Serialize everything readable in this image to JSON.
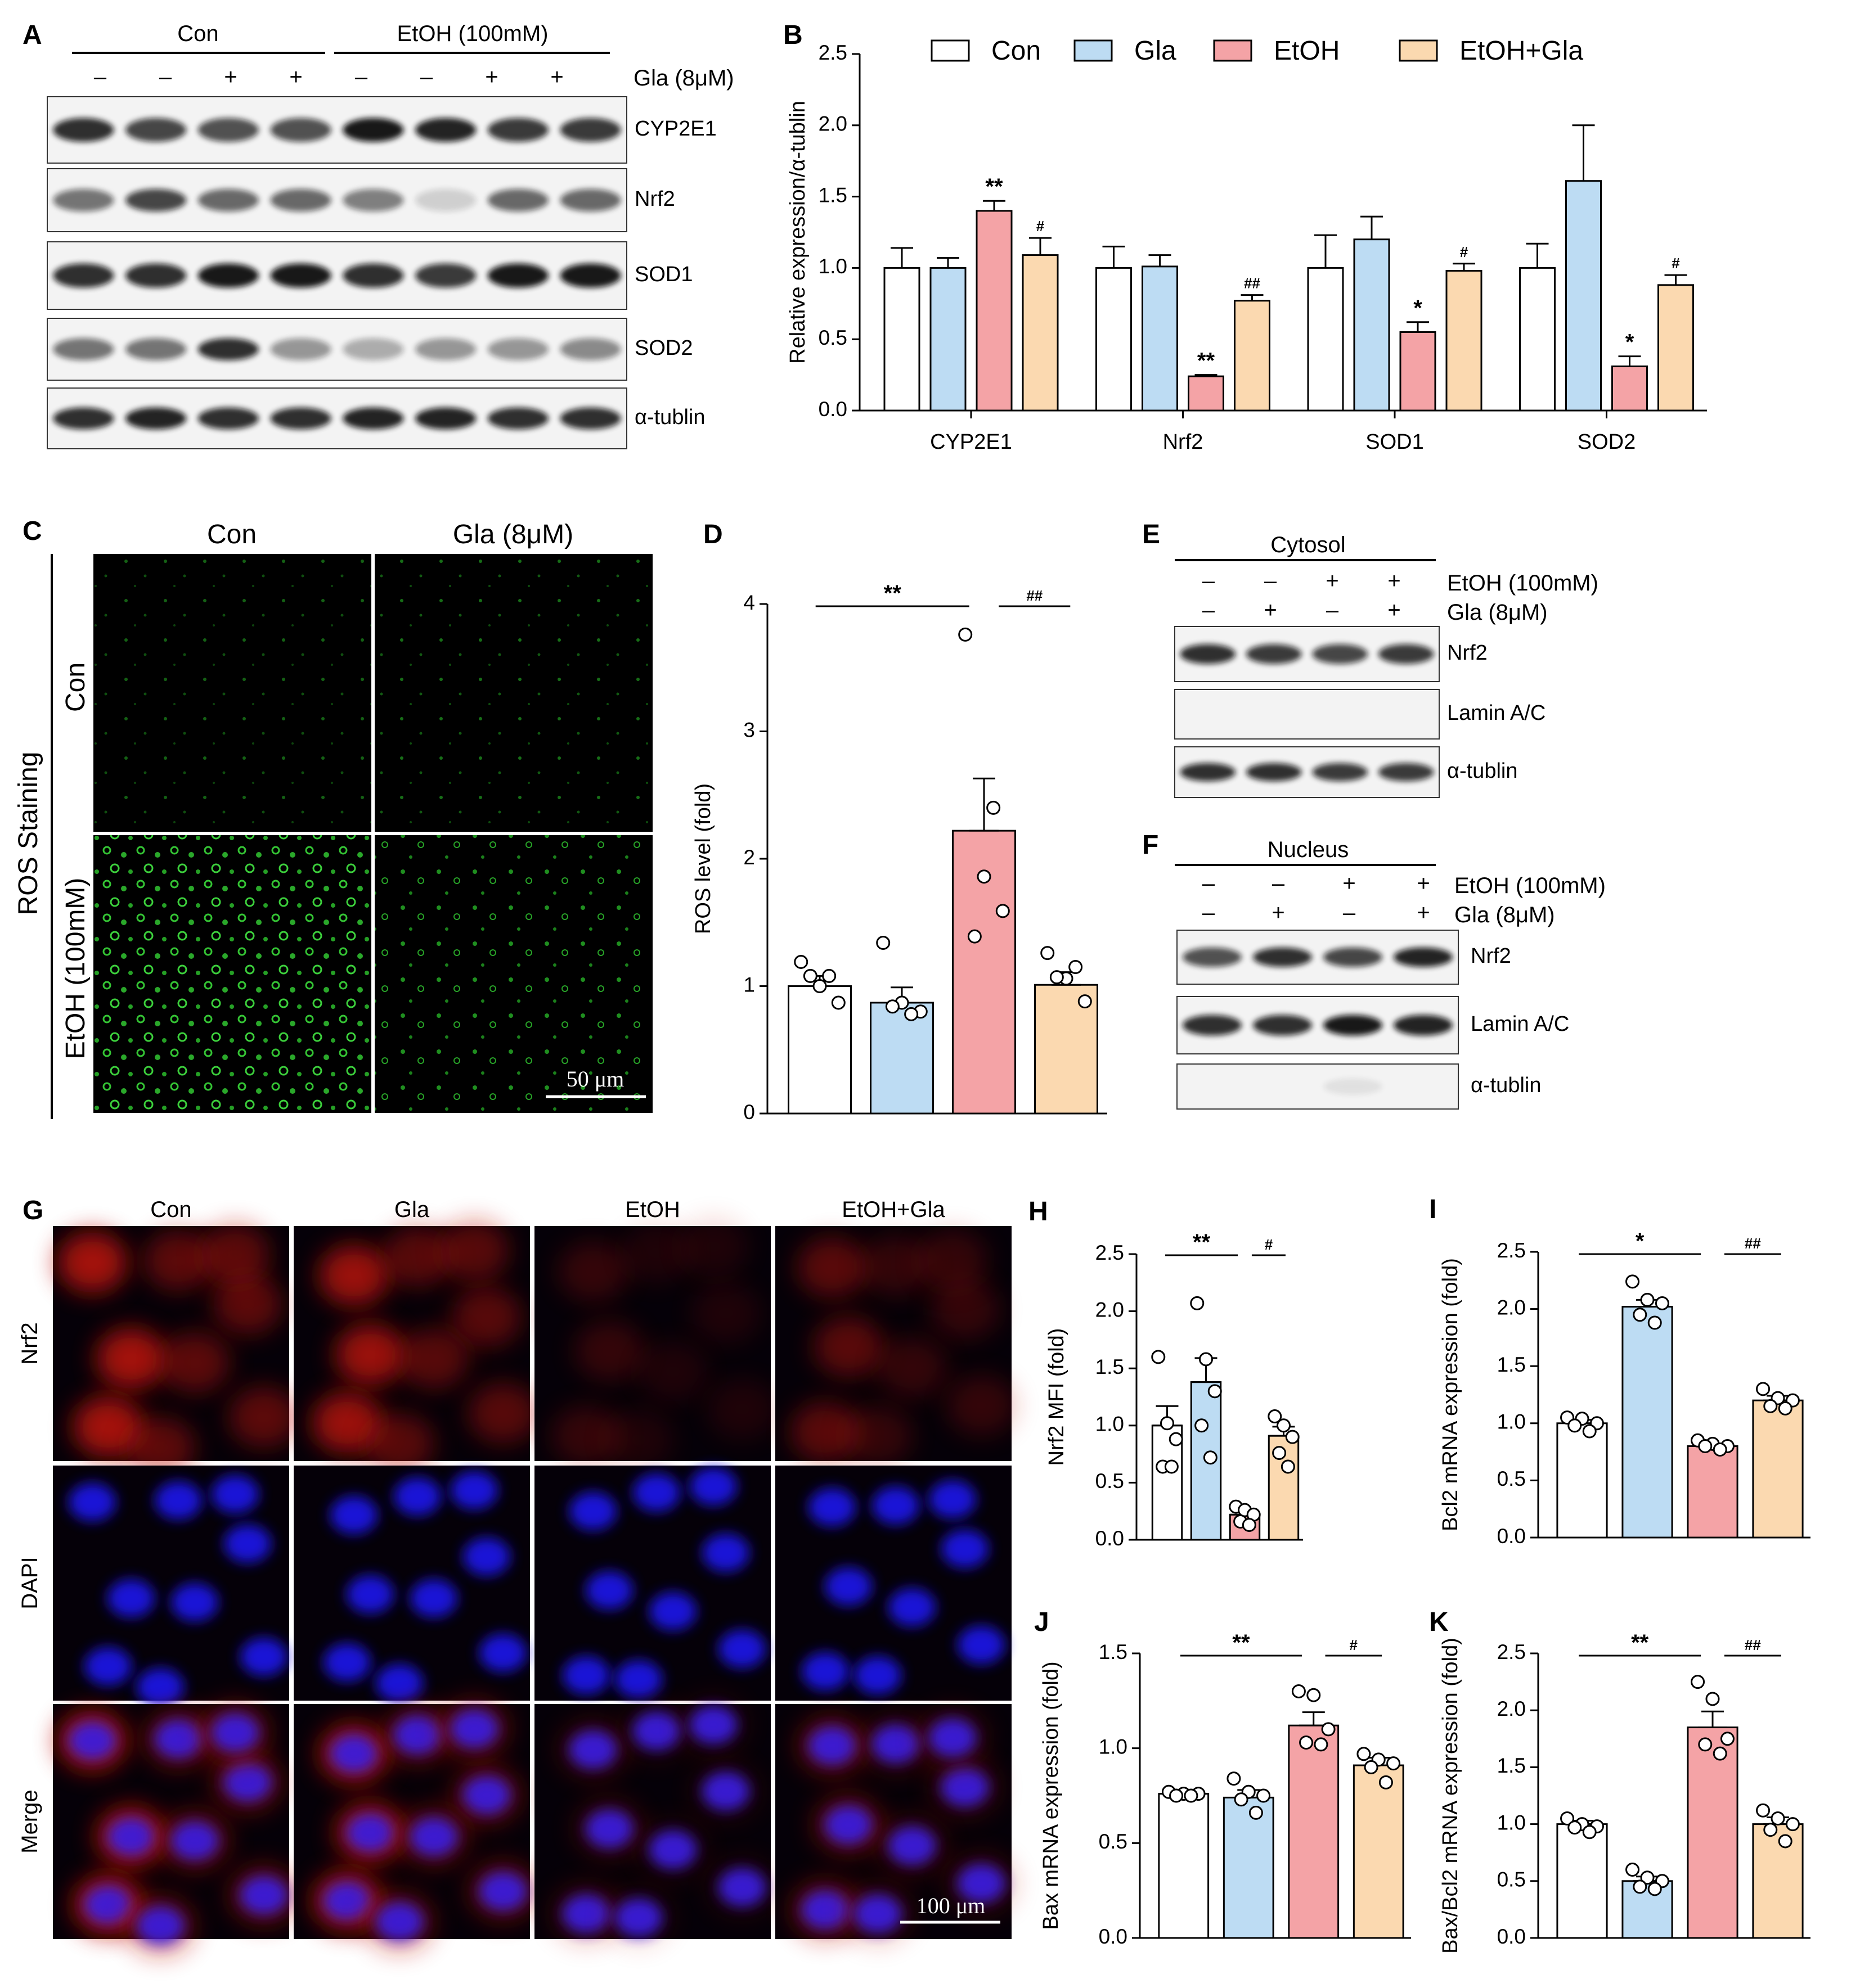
{
  "colors": {
    "Con": "#ffffff",
    "Gla": "#bddcf3",
    "EtOH": "#f4a3a6",
    "EtOH+Gla": "#fbd9b0"
  },
  "panels": {
    "A": {
      "label": "A",
      "groups": [
        "Con",
        "EtOH (100mM)"
      ],
      "treatment_label": "Gla (8μM)",
      "treatment_signs": [
        "–",
        "–",
        "+",
        "+",
        "–",
        "–",
        "+",
        "+"
      ],
      "blots": [
        "CYP2E1",
        "Nrf2",
        "SOD1",
        "SOD2",
        "α-tublin"
      ]
    },
    "C": {
      "label": "C",
      "col_labels": [
        "Con",
        "Gla (8μM)"
      ],
      "row_labels": [
        "Con",
        "EtOH (100mM)"
      ],
      "side_label": "ROS Staining",
      "scale_bar": "50 μm"
    },
    "E": {
      "label": "E",
      "fraction": "Cytosol",
      "etoh_label": "EtOH (100mM)",
      "gla_label": "Gla (8μM)",
      "etoh_signs": [
        "–",
        "–",
        "+",
        "+"
      ],
      "gla_signs": [
        "–",
        "+",
        "–",
        "+"
      ],
      "blots": [
        "Nrf2",
        "Lamin A/C",
        "α-tublin"
      ]
    },
    "F": {
      "label": "F",
      "fraction": "Nucleus",
      "etoh_label": "EtOH (100mM)",
      "gla_label": "Gla (8μM)",
      "etoh_signs": [
        "–",
        "–",
        "+",
        "+"
      ],
      "gla_signs": [
        "–",
        "+",
        "–",
        "+"
      ],
      "blots": [
        "Nrf2",
        "Lamin A/C",
        "α-tublin"
      ]
    },
    "G": {
      "label": "G",
      "col_labels": [
        "Con",
        "Gla",
        "EtOH",
        "EtOH+Gla"
      ],
      "row_labels": [
        "Nrf2",
        "DAPI",
        "Merge"
      ],
      "scale_bar": "100 μm"
    }
  },
  "chart_data": [
    {
      "id": "B",
      "label": "B",
      "type": "bar",
      "categories": [
        "CYP2E1",
        "Nrf2",
        "SOD1",
        "SOD2"
      ],
      "ylabel": "Relative expression/α-tublin",
      "ylim": [
        0,
        2.5
      ],
      "yticks": [
        "0.0",
        "0.5",
        "1.0",
        "1.5",
        "2.0",
        "2.5"
      ],
      "legend": [
        "Con",
        "Gla",
        "EtOH",
        "EtOH+Gla"
      ],
      "legend_position": "top",
      "series": [
        {
          "name": "Con",
          "values": [
            1.0,
            1.0,
            1.0,
            1.0
          ],
          "errors": [
            0.14,
            0.15,
            0.23,
            0.17
          ],
          "sig": [
            "",
            "",
            "",
            ""
          ]
        },
        {
          "name": "Gla",
          "values": [
            1.0,
            1.01,
            1.2,
            1.61
          ],
          "errors": [
            0.07,
            0.08,
            0.16,
            0.39
          ],
          "sig": [
            "",
            "",
            "",
            ""
          ]
        },
        {
          "name": "EtOH",
          "values": [
            1.4,
            0.24,
            0.55,
            0.31
          ],
          "errors": [
            0.07,
            0.01,
            0.07,
            0.07
          ],
          "sig": [
            "**",
            "**",
            "*",
            "*"
          ]
        },
        {
          "name": "EtOH+Gla",
          "values": [
            1.09,
            0.77,
            0.98,
            0.88
          ],
          "errors": [
            0.12,
            0.04,
            0.05,
            0.07
          ],
          "sig": [
            "#",
            "##",
            "#",
            "#"
          ]
        }
      ]
    },
    {
      "id": "D",
      "label": "D",
      "type": "bar",
      "categories": [
        "Con",
        "Gla",
        "EtOH",
        "EtOH+Gla"
      ],
      "ylabel": "ROS level (fold)",
      "ylim": [
        0,
        4
      ],
      "yticks": [
        "0",
        "1",
        "2",
        "3",
        "4"
      ],
      "values": [
        1.0,
        0.87,
        2.22,
        1.01
      ],
      "errors": [
        0.08,
        0.12,
        0.41,
        0.1
      ],
      "points": [
        [
          1.19,
          1.0,
          0.87,
          1.08,
          1.08
        ],
        [
          1.34,
          0.87,
          0.8,
          0.84,
          0.78
        ],
        [
          3.76,
          1.86,
          1.59,
          1.39,
          2.4
        ],
        [
          1.26,
          1.06,
          0.88,
          1.07,
          1.15
        ]
      ],
      "brackets": [
        {
          "from": 0,
          "to": 2,
          "text": "**"
        },
        {
          "from": 2,
          "to": 3,
          "text": "##"
        }
      ]
    },
    {
      "id": "H",
      "label": "H",
      "type": "bar",
      "categories": [
        "Con",
        "Gla",
        "EtOH",
        "EtOH+Gla"
      ],
      "ylabel": "Nrf2 MFI (fold)",
      "ylim": [
        0,
        2.5
      ],
      "yticks": [
        "0.0",
        "0.5",
        "1.0",
        "1.5",
        "2.0",
        "2.5"
      ],
      "values": [
        1.0,
        1.38,
        0.22,
        0.91
      ],
      "errors": [
        0.17,
        0.21,
        0.04,
        0.08
      ],
      "points": [
        [
          1.6,
          1.02,
          0.88,
          0.64,
          0.64
        ],
        [
          2.07,
          1.58,
          1.3,
          1.0,
          0.72
        ],
        [
          0.29,
          0.26,
          0.22,
          0.16,
          0.13
        ],
        [
          1.08,
          1.0,
          0.9,
          0.76,
          0.64
        ]
      ],
      "brackets": [
        {
          "from": 0,
          "to": 2,
          "text": "**"
        },
        {
          "from": 2,
          "to": 3,
          "text": "#"
        }
      ]
    },
    {
      "id": "I",
      "label": "I",
      "type": "bar",
      "categories": [
        "Con",
        "Gla",
        "EtOH",
        "EtOH+Gla"
      ],
      "ylabel": "Bcl2 mRNA expression (fold)",
      "ylim": [
        0,
        2.5
      ],
      "yticks": [
        "0.0",
        "0.5",
        "1.0",
        "1.5",
        "2.0",
        "2.5"
      ],
      "values": [
        1.0,
        2.02,
        0.8,
        1.2
      ],
      "errors": [
        0.03,
        0.06,
        0.02,
        0.04
      ],
      "points": [
        [
          1.05,
          1.04,
          1.0,
          0.98,
          0.93
        ],
        [
          2.24,
          2.08,
          2.05,
          1.95,
          1.88
        ],
        [
          0.85,
          0.82,
          0.8,
          0.8,
          0.77
        ],
        [
          1.3,
          1.22,
          1.2,
          1.15,
          1.13
        ]
      ],
      "brackets": [
        {
          "from": 0,
          "to": 2,
          "text": "*"
        },
        {
          "from": 2,
          "to": 3,
          "text": "##"
        }
      ]
    },
    {
      "id": "J",
      "label": "J",
      "type": "bar",
      "categories": [
        "Con",
        "Gla",
        "EtOH",
        "EtOH+Gla"
      ],
      "ylabel": "Bax mRNA expression (fold)",
      "ylim": [
        0,
        1.5
      ],
      "yticks": [
        "0.0",
        "0.5",
        "1.0",
        "1.5"
      ],
      "values": [
        0.76,
        0.74,
        1.12,
        0.91
      ],
      "errors": [
        0.01,
        0.04,
        0.07,
        0.04
      ],
      "points": [
        [
          0.77,
          0.76,
          0.76,
          0.75,
          0.75
        ],
        [
          0.84,
          0.77,
          0.75,
          0.73,
          0.66
        ],
        [
          1.3,
          1.28,
          1.1,
          1.03,
          1.02
        ],
        [
          0.97,
          0.94,
          0.92,
          0.9,
          0.82
        ]
      ],
      "brackets": [
        {
          "from": 0,
          "to": 2,
          "text": "**"
        },
        {
          "from": 2,
          "to": 3,
          "text": "#"
        }
      ]
    },
    {
      "id": "K",
      "label": "K",
      "type": "bar",
      "categories": [
        "Con",
        "Gla",
        "EtOH",
        "EtOH+Gla"
      ],
      "ylabel": "Bax/Bcl2 mRNA expression (fold)",
      "ylim": [
        0,
        2.5
      ],
      "yticks": [
        "0.0",
        "0.5",
        "1.0",
        "1.5",
        "2.0",
        "2.5"
      ],
      "values": [
        1.0,
        0.5,
        1.85,
        1.0
      ],
      "errors": [
        0.03,
        0.04,
        0.14,
        0.06
      ],
      "points": [
        [
          1.05,
          1.0,
          0.98,
          0.97,
          0.93
        ],
        [
          0.6,
          0.53,
          0.5,
          0.45,
          0.43
        ],
        [
          2.25,
          2.1,
          1.75,
          1.7,
          1.62
        ],
        [
          1.12,
          1.05,
          1.0,
          0.95,
          0.85
        ]
      ],
      "brackets": [
        {
          "from": 0,
          "to": 2,
          "text": "**"
        },
        {
          "from": 2,
          "to": 3,
          "text": "##"
        }
      ]
    }
  ]
}
